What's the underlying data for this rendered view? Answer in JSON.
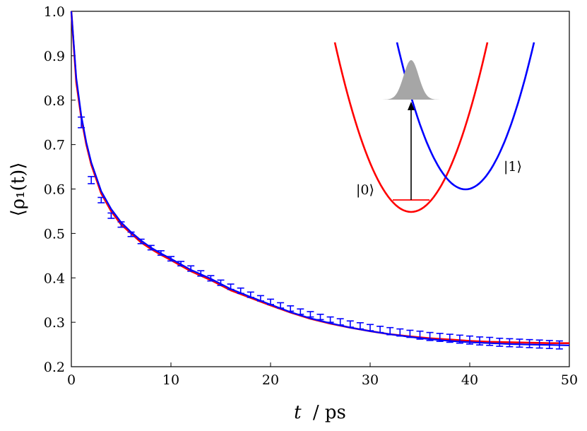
{
  "chart_data": {
    "type": "line",
    "title": "",
    "xlabel_var": "t",
    "xlabel_unit": "/ ps",
    "ylabel": "⟨ρ₁(t)⟩",
    "xlim": [
      0,
      50
    ],
    "ylim": [
      0.2,
      1.0
    ],
    "xticks": [
      "0",
      "10",
      "20",
      "30",
      "40",
      "50"
    ],
    "yticks": [
      "0.2",
      "0.3",
      "0.4",
      "0.5",
      "0.6",
      "0.7",
      "0.8",
      "0.9",
      "1.0"
    ],
    "grid": false,
    "legend": "none",
    "series": [
      {
        "color": "#ff0000",
        "x": [
          0,
          0.5,
          1,
          1.5,
          2,
          3,
          4,
          5,
          6,
          7,
          8,
          9,
          10,
          12,
          14,
          16,
          18,
          20,
          22,
          24,
          26,
          28,
          30,
          32,
          34,
          36,
          38,
          40,
          42,
          44,
          46,
          48,
          50
        ],
        "y": [
          1.0,
          0.84,
          0.76,
          0.7,
          0.655,
          0.59,
          0.55,
          0.52,
          0.5,
          0.48,
          0.465,
          0.452,
          0.44,
          0.415,
          0.395,
          0.372,
          0.355,
          0.338,
          0.322,
          0.308,
          0.297,
          0.288,
          0.28,
          0.273,
          0.268,
          0.264,
          0.261,
          0.258,
          0.256,
          0.255,
          0.254,
          0.253,
          0.253
        ]
      },
      {
        "color": "#0000ff",
        "x": [
          0,
          0.5,
          1,
          1.5,
          2,
          3,
          4,
          5,
          6,
          7,
          8,
          9,
          10,
          12,
          14,
          16,
          18,
          20,
          22,
          24,
          26,
          28,
          30,
          32,
          34,
          36,
          38,
          40,
          42,
          44,
          46,
          48,
          50
        ],
        "y": [
          1.0,
          0.85,
          0.765,
          0.705,
          0.66,
          0.595,
          0.555,
          0.525,
          0.503,
          0.484,
          0.468,
          0.455,
          0.443,
          0.418,
          0.398,
          0.375,
          0.357,
          0.34,
          0.323,
          0.309,
          0.298,
          0.288,
          0.28,
          0.273,
          0.267,
          0.262,
          0.258,
          0.255,
          0.253,
          0.251,
          0.25,
          0.249,
          0.248
        ]
      }
    ],
    "errorbars": {
      "color": "#0000ff",
      "x": [
        1,
        2,
        3,
        4,
        5,
        6,
        7,
        8,
        9,
        10,
        11,
        12,
        13,
        14,
        15,
        16,
        17,
        18,
        19,
        20,
        21,
        22,
        23,
        24,
        25,
        26,
        27,
        28,
        29,
        30,
        31,
        32,
        33,
        34,
        35,
        36,
        37,
        38,
        39,
        40,
        41,
        42,
        43,
        44,
        45,
        46,
        47,
        48,
        49
      ],
      "y": [
        0.75,
        0.62,
        0.575,
        0.54,
        0.52,
        0.498,
        0.482,
        0.468,
        0.456,
        0.443,
        0.432,
        0.421,
        0.41,
        0.399,
        0.389,
        0.38,
        0.371,
        0.362,
        0.354,
        0.346,
        0.338,
        0.331,
        0.324,
        0.318,
        0.312,
        0.306,
        0.301,
        0.296,
        0.292,
        0.288,
        0.284,
        0.28,
        0.277,
        0.274,
        0.271,
        0.268,
        0.266,
        0.264,
        0.262,
        0.26,
        0.258,
        0.257,
        0.255,
        0.254,
        0.253,
        0.252,
        0.251,
        0.25,
        0.249
      ],
      "err": [
        0.012,
        0.008,
        0.006,
        0.006,
        0.006,
        0.005,
        0.005,
        0.005,
        0.005,
        0.005,
        0.005,
        0.006,
        0.006,
        0.006,
        0.006,
        0.006,
        0.006,
        0.006,
        0.006,
        0.006,
        0.006,
        0.006,
        0.006,
        0.006,
        0.006,
        0.006,
        0.007,
        0.007,
        0.007,
        0.007,
        0.007,
        0.008,
        0.008,
        0.008,
        0.009,
        0.009,
        0.009,
        0.009,
        0.009,
        0.009,
        0.009,
        0.009,
        0.009,
        0.009,
        0.009,
        0.009,
        0.009,
        0.009,
        0.009
      ]
    },
    "inset": {
      "ket0": "|0⟩",
      "ket1": "|1⟩",
      "colors": {
        "well0": "#ff0000",
        "well1": "#0000ff",
        "wavepacket": "#a6a6a6",
        "arrow": "#000000"
      }
    }
  }
}
